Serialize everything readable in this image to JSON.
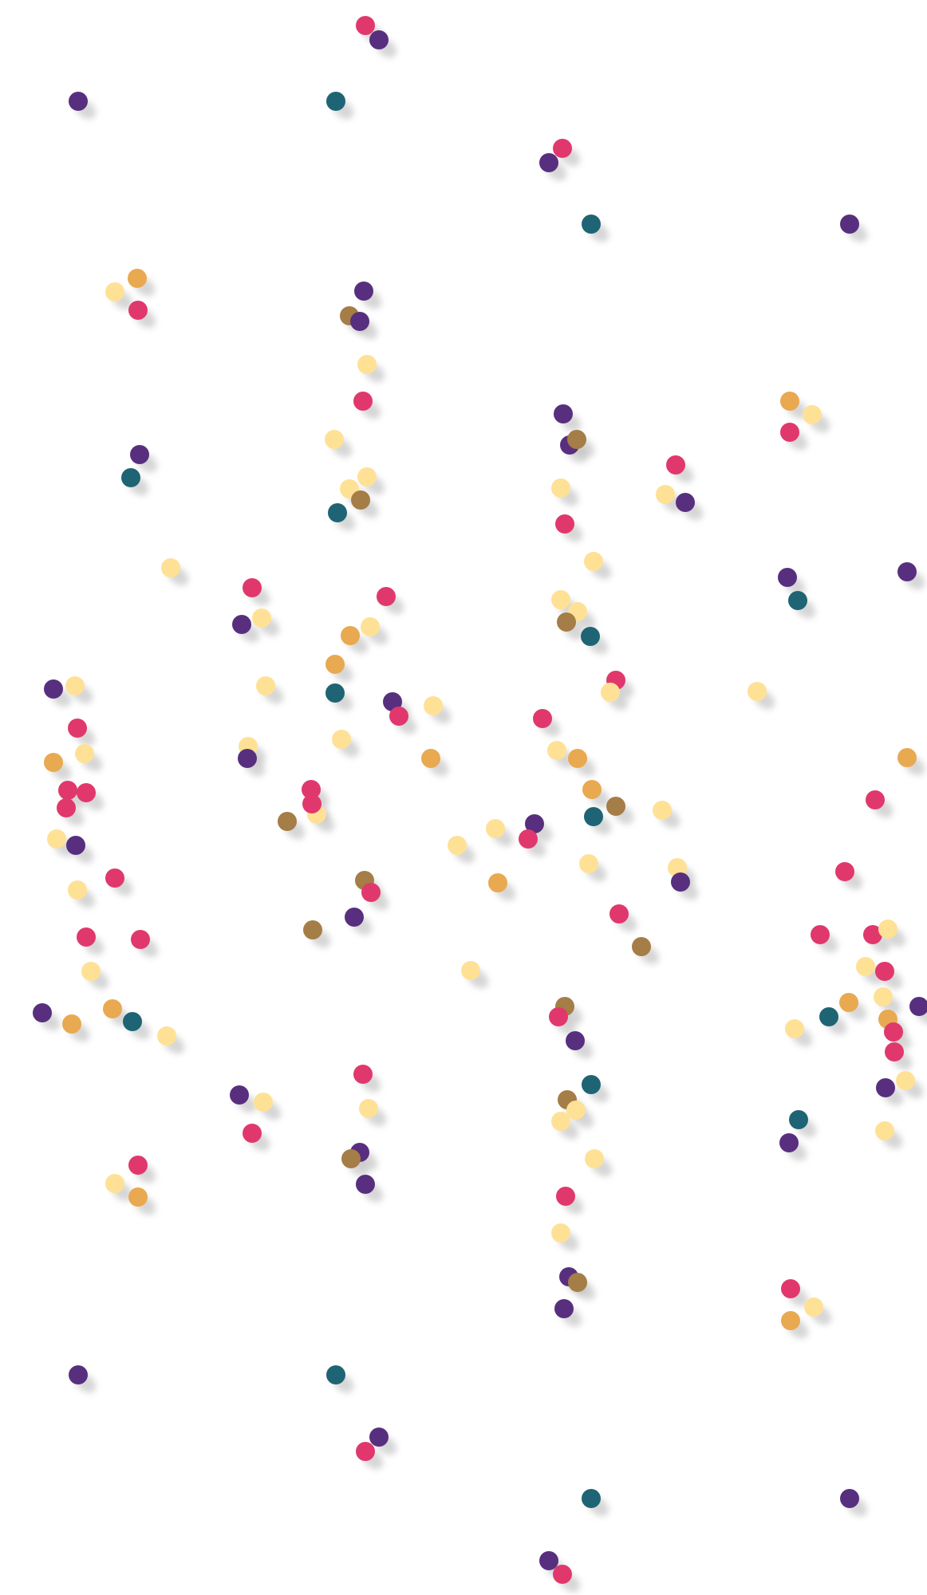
{
  "palette": {
    "magenta": "#e0386d",
    "purple": "#582f7e",
    "teal": "#1f6474",
    "orange": "#e8a950",
    "yellow": "#ffe196",
    "brown": "#a57d46",
    "shadow": "#b5b5b5",
    "background": "#ffffff"
  }
}
